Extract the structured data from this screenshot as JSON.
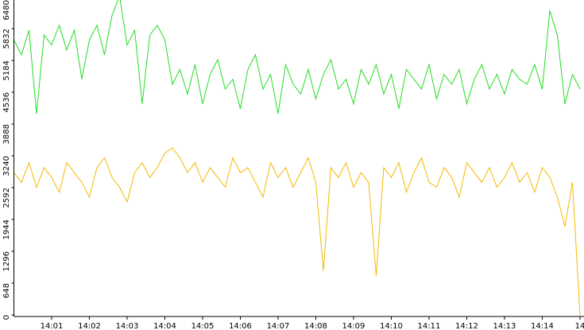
{
  "chart_data": {
    "type": "line",
    "x": [
      0,
      0.2,
      0.4,
      0.6,
      0.8,
      1,
      1.2,
      1.4,
      1.6,
      1.8,
      2,
      2.2,
      2.4,
      2.6,
      2.8,
      3,
      3.2,
      3.4,
      3.6,
      3.8,
      4,
      4.2,
      4.4,
      4.6,
      4.8,
      5,
      5.2,
      5.4,
      5.6,
      5.8,
      6,
      6.2,
      6.4,
      6.6,
      6.8,
      7,
      7.2,
      7.4,
      7.6,
      7.8,
      8,
      8.2,
      8.4,
      8.6,
      8.8,
      9,
      9.2,
      9.4,
      9.6,
      9.8,
      10,
      10.2,
      10.4,
      10.6,
      10.8,
      11,
      11.2,
      11.4,
      11.6,
      11.8,
      12,
      12.2,
      12.4,
      12.6,
      12.8,
      13,
      13.2,
      13.4,
      13.6,
      13.8,
      14,
      14.2,
      14.4,
      14.6,
      14.8,
      15
    ],
    "series": [
      {
        "color": "#22dd22",
        "values": [
          5600,
          5300,
          5800,
          4100,
          5700,
          5500,
          5900,
          5400,
          5800,
          4800,
          5600,
          5900,
          5300,
          6100,
          6500,
          5500,
          5800,
          4300,
          5700,
          5900,
          5600,
          4700,
          5000,
          4500,
          5100,
          4300,
          4900,
          5200,
          4600,
          4800,
          4200,
          5000,
          5300,
          4600,
          4900,
          4100,
          5100,
          4700,
          4500,
          5000,
          4400,
          4900,
          5200,
          4600,
          4800,
          4300,
          5000,
          4700,
          5100,
          4500,
          4900,
          4200,
          5000,
          4800,
          4600,
          5100,
          4400,
          4900,
          4700,
          5000,
          4300,
          4800,
          5100,
          4600,
          4900,
          4500,
          5000,
          4800,
          4700,
          5100,
          4600,
          6200,
          5700,
          4300,
          4900,
          4600
        ]
      },
      {
        "color": "#f5b800",
        "values": [
          2900,
          2700,
          3100,
          2600,
          3000,
          2800,
          2500,
          3100,
          2900,
          2700,
          2400,
          3000,
          3200,
          2800,
          2600,
          2300,
          2900,
          3100,
          2800,
          3000,
          3300,
          3400,
          3200,
          2900,
          3100,
          2700,
          3000,
          2800,
          2600,
          3200,
          2900,
          3000,
          2700,
          2400,
          3100,
          2800,
          3000,
          2600,
          2900,
          3200,
          2700,
          900,
          3000,
          2800,
          3100,
          2600,
          2900,
          2700,
          800,
          3000,
          2800,
          3100,
          2500,
          2900,
          3200,
          2700,
          2600,
          3000,
          2800,
          2400,
          3100,
          2900,
          2700,
          3000,
          2600,
          2800,
          3100,
          2700,
          2900,
          2500,
          3000,
          2800,
          2400,
          1800,
          2700,
          0
        ]
      }
    ],
    "xlim": [
      0,
      15.1
    ],
    "xticks": [
      {
        "value": 1,
        "label": "14:01"
      },
      {
        "value": 2,
        "label": "14:02"
      },
      {
        "value": 3,
        "label": "14:03"
      },
      {
        "value": 4,
        "label": "14:04"
      },
      {
        "value": 5,
        "label": "14:05"
      },
      {
        "value": 6,
        "label": "14:06"
      },
      {
        "value": 7,
        "label": "14:07"
      },
      {
        "value": 8,
        "label": "14:08"
      },
      {
        "value": 9,
        "label": "14:09"
      },
      {
        "value": 10,
        "label": "14:10"
      },
      {
        "value": 11,
        "label": "14:11"
      },
      {
        "value": 12,
        "label": "14:12"
      },
      {
        "value": 13,
        "label": "14:13"
      },
      {
        "value": 14,
        "label": "14:14"
      },
      {
        "value": 15,
        "label": "14"
      }
    ],
    "ylim": [
      0,
      6480
    ],
    "yticks": [
      0,
      648,
      1296,
      1944,
      2592,
      3240,
      3888,
      4536,
      5184,
      5832,
      6480
    ]
  }
}
